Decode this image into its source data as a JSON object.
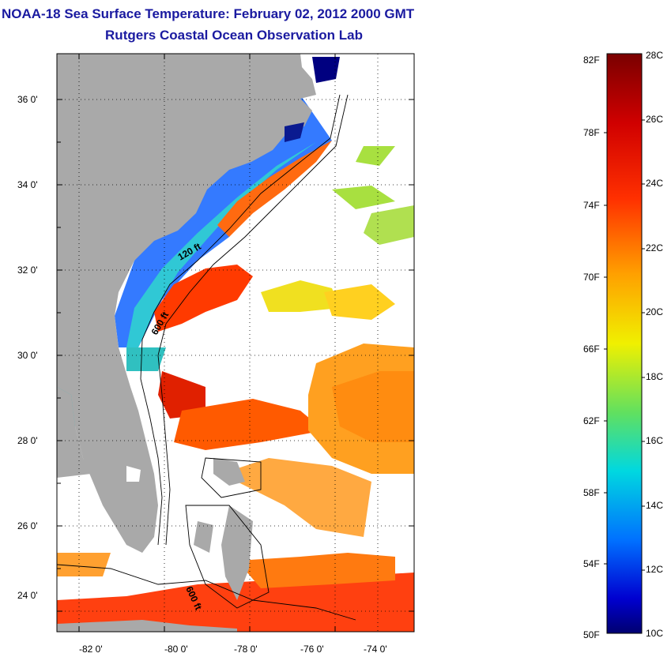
{
  "header": {
    "title": "NOAA-18 Sea Surface Temperature:  February 02, 2012 2000 GMT",
    "subtitle": "Rutgers Coastal Ocean Observation Lab"
  },
  "map": {
    "lat_labels": [
      "36 0'",
      "34 0'",
      "32 0'",
      "30 0'",
      "28 0'",
      "26 0'",
      "24 0'"
    ],
    "lon_labels": [
      "-82 0'",
      "-80 0'",
      "-78 0'",
      "-76 0'",
      "-74 0'"
    ],
    "contour_labels": [
      "120 ft",
      "600 ft",
      "600 ft"
    ],
    "colors": {
      "land": "#a9a9a9",
      "cloud": "#ffffff"
    }
  },
  "colorbar": {
    "fahrenheit_labels": [
      "82F",
      "78F",
      "74F",
      "70F",
      "66F",
      "62F",
      "58F",
      "54F",
      "50F"
    ],
    "celsius_labels": [
      "28C",
      "26C",
      "24C",
      "22C",
      "20C",
      "18C",
      "16C",
      "14C",
      "12C",
      "10C"
    ],
    "stops": [
      "#7a0000",
      "#c00000",
      "#ff2000",
      "#ff6000",
      "#ffa000",
      "#ffe000",
      "#c0f020",
      "#60e080",
      "#00d0e0",
      "#00a0ff",
      "#0050ff",
      "#0000d0",
      "#000070"
    ]
  }
}
